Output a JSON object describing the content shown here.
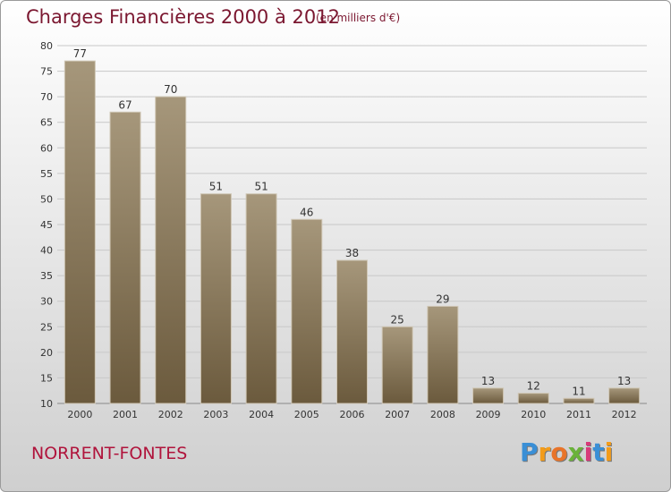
{
  "header": {
    "title": "Charges Financières 2000 à 2012",
    "unit": "(en milliers d'€)"
  },
  "footer": {
    "commune": "NORRENT-FONTES",
    "logo": {
      "text": "Proxiti",
      "letters": [
        "P",
        "r",
        "o",
        "x",
        "i",
        "t",
        "i"
      ],
      "colors": [
        "#3a8fd6",
        "#f39c1a",
        "#e8742a",
        "#6ab23a",
        "#d83a7a",
        "#3a8fd6",
        "#f39c1a"
      ]
    }
  },
  "chart_data": {
    "type": "bar",
    "categories": [
      "2000",
      "2001",
      "2002",
      "2003",
      "2004",
      "2005",
      "2006",
      "2007",
      "2008",
      "2009",
      "2010",
      "2011",
      "2012"
    ],
    "values": [
      77,
      67,
      70,
      51,
      51,
      46,
      38,
      25,
      29,
      13,
      12,
      11,
      13
    ],
    "title": "Charges Financières 2000 à 2012",
    "subtitle": "(en milliers d'€)",
    "xlabel": "",
    "ylabel": "",
    "ylim": [
      10,
      80
    ],
    "yticks": [
      10,
      15,
      20,
      25,
      30,
      35,
      40,
      45,
      50,
      55,
      60,
      65,
      70,
      75,
      80
    ],
    "grid": true,
    "colors": {
      "bar_light": "#a6977b",
      "bar_dark": "#6b5a3d",
      "bar_edge": "#cfc6b4"
    }
  }
}
